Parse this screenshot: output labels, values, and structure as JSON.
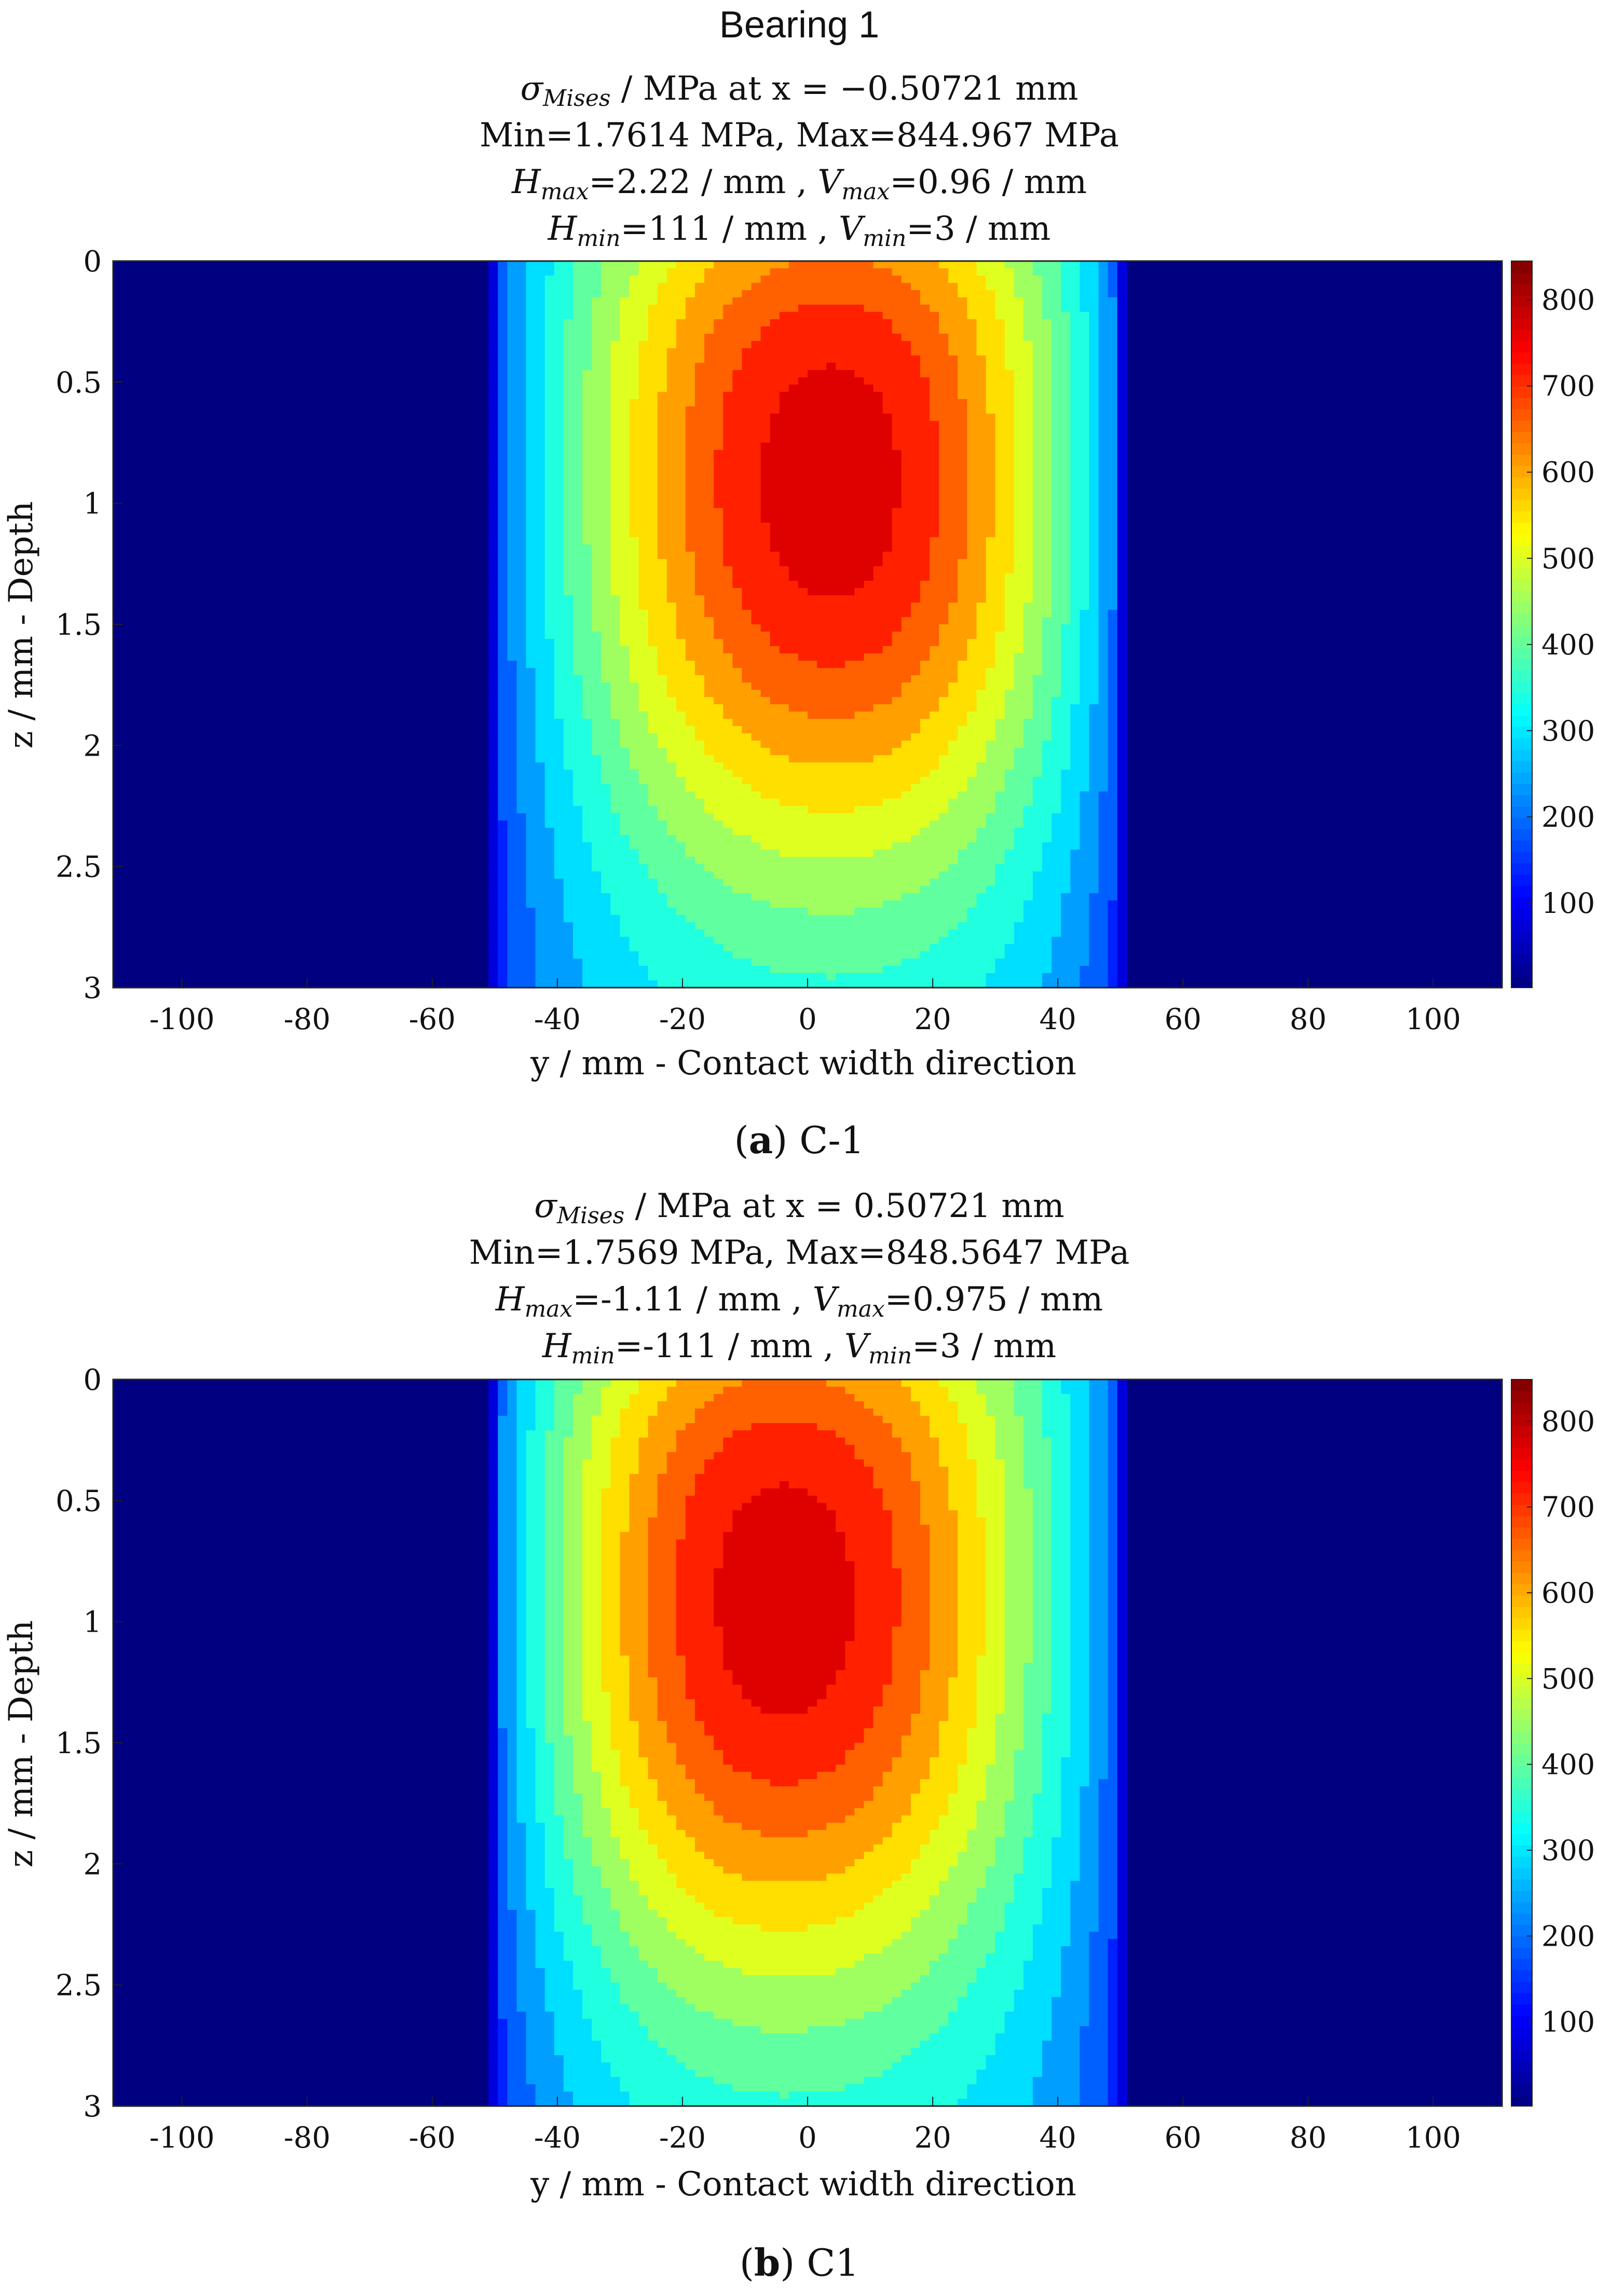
{
  "figure_title": "Bearing 1",
  "panels": [
    {
      "title_lines": [
        "σMises / MPa at x = −0.50721 mm",
        "Min=1.7614 MPa, Max=844.967 MPa",
        "Hmax=2.22 / mm , Vmax=0.96 / mm",
        "Hmin=111 / mm , Vmin=3 / mm"
      ],
      "title_line1": {
        "sym": "σ",
        "sub": "Mises",
        "rest": " / MPa at x = −0.50721 mm"
      },
      "title_line2": "Min=1.7614 MPa, Max=844.967 MPa",
      "title_line3": {
        "h": "H",
        "hsub": "max",
        "hval": "=2.22 / mm , ",
        "v": "V",
        "vsub": "max",
        "vval": "=0.96 / mm"
      },
      "title_line4": {
        "h": "H",
        "hsub": "min",
        "hval": "=111 / mm , ",
        "v": "V",
        "vsub": "min",
        "vval": "=3 / mm"
      },
      "caption_letter": "a",
      "caption_text": " C-1",
      "colorbar_ticks": [
        "100",
        "200",
        "300",
        "400",
        "500",
        "600",
        "700",
        "800"
      ],
      "chart_data": {
        "type": "heatmap",
        "subtype": "filled-contour",
        "title": "σMises / MPa at x = −0.50721 mm",
        "xlabel": "y / mm - Contact width direction",
        "ylabel": "z / mm - Depth",
        "xlim": [
          -111,
          111
        ],
        "ylim": [
          0,
          3
        ],
        "y_reversed": true,
        "x_ticks": [
          "-100",
          "-80",
          "-60",
          "-40",
          "-20",
          "0",
          "20",
          "40",
          "60",
          "80",
          "100"
        ],
        "y_ticks": [
          "0",
          "0.5",
          "1",
          "1.5",
          "2",
          "2.5",
          "3"
        ],
        "color_range": [
          1.7614,
          844.967
        ],
        "colorbar_ticks": [
          100,
          200,
          300,
          400,
          500,
          600,
          700,
          800
        ],
        "min_value": 1.7614,
        "max_value": 844.967,
        "max_location": {
          "y": 2.22,
          "z": 0.96
        },
        "min_location": {
          "y": 111,
          "z": 3
        },
        "loaded_width": [
          -52,
          52
        ],
        "peak_center": {
          "y": 4,
          "z": 1.05
        }
      }
    },
    {
      "title_lines": [
        "σMises / MPa at x = 0.50721 mm",
        "Min=1.7569 MPa, Max=848.5647 MPa",
        "Hmax=-1.11 / mm , Vmax=0.975 / mm",
        "Hmin=-111 / mm , Vmin=3 / mm"
      ],
      "title_line1": {
        "sym": "σ",
        "sub": "Mises",
        "rest": " / MPa at x = 0.50721 mm"
      },
      "title_line2": "Min=1.7569 MPa, Max=848.5647 MPa",
      "title_line3": {
        "h": "H",
        "hsub": "max",
        "hval": "=-1.11 / mm , ",
        "v": "V",
        "vsub": "max",
        "vval": "=0.975 / mm"
      },
      "title_line4": {
        "h": "H",
        "hsub": "min",
        "hval": "=-111 / mm , ",
        "v": "V",
        "vsub": "min",
        "vval": "=3 / mm"
      },
      "caption_letter": "b",
      "caption_text": " C1",
      "colorbar_ticks": [
        "100",
        "200",
        "300",
        "400",
        "500",
        "600",
        "700",
        "800"
      ],
      "chart_data": {
        "type": "heatmap",
        "subtype": "filled-contour",
        "title": "σMises / MPa at x = 0.50721 mm",
        "xlabel": "y / mm - Contact width direction",
        "ylabel": "z / mm - Depth",
        "xlim": [
          -111,
          111
        ],
        "ylim": [
          0,
          3
        ],
        "y_reversed": true,
        "x_ticks": [
          "-100",
          "-80",
          "-60",
          "-40",
          "-20",
          "0",
          "20",
          "40",
          "60",
          "80",
          "100"
        ],
        "y_ticks": [
          "0",
          "0.5",
          "1",
          "1.5",
          "2",
          "2.5",
          "3"
        ],
        "color_range": [
          1.7569,
          848.5647
        ],
        "colorbar_ticks": [
          100,
          200,
          300,
          400,
          500,
          600,
          700,
          800
        ],
        "min_value": 1.7569,
        "max_value": 848.5647,
        "max_location": {
          "y": -1.11,
          "z": 0.975
        },
        "min_location": {
          "y": -111,
          "z": 3
        },
        "loaded_width": [
          -52,
          52
        ],
        "peak_center": {
          "y": -4,
          "z": 1.05
        }
      }
    }
  ]
}
